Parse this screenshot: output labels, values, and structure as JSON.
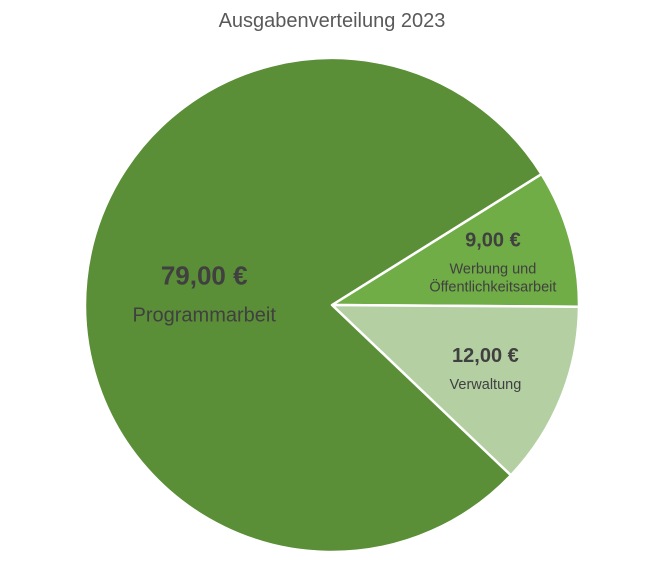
{
  "chart_data": {
    "type": "pie",
    "title": "Ausgabenverteilung 2023",
    "slices": [
      {
        "name": "Werbung und Öffentlichkeitsarbeit",
        "value": 9.0,
        "value_label": "9,00 €",
        "label_lines": [
          "Werbung und",
          "Öffentlichkeitsarbeit"
        ],
        "color": "#70ad47"
      },
      {
        "name": "Verwaltung",
        "value": 12.0,
        "value_label": "12,00 €",
        "label_lines": [
          "Verwaltung"
        ],
        "color": "#b4d0a3"
      },
      {
        "name": "Programmarbeit",
        "value": 79.0,
        "value_label": "79,00 €",
        "label_lines": [
          "Programmarbeit"
        ],
        "color": "#5a8e37"
      }
    ],
    "legend": "none"
  }
}
